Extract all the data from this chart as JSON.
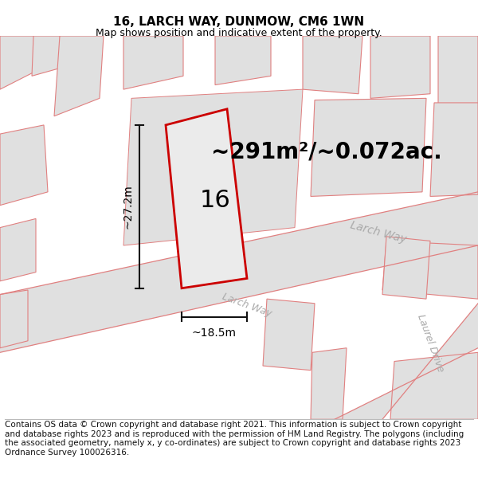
{
  "title": "16, LARCH WAY, DUNMOW, CM6 1WN",
  "subtitle": "Map shows position and indicative extent of the property.",
  "area_label": "~291m²/~0.072ac.",
  "number_label": "16",
  "width_label": "~18.5m",
  "height_label": "~27.2m",
  "larch_way_label": "Larch Way",
  "larch_way_road_label": "Larch Way",
  "laurel_drive_label": "Laurel Drive",
  "footer": "Contains OS data © Crown copyright and database right 2021. This information is subject to Crown copyright and database rights 2023 and is reproduced with the permission of HM Land Registry. The polygons (including the associated geometry, namely x, y co-ordinates) are subject to Crown copyright and database rights 2023 Ordnance Survey 100026316.",
  "map_bg": "#f7f7f7",
  "road_fill": "#e0e0e0",
  "building_fill": "#e0e0e0",
  "building_edge": "#e08080",
  "plot_edge": "#cc0000",
  "plot_fill": "#ebebeb",
  "dim_color": "#111111",
  "road_label_color": "#aaaaaa",
  "title_fontsize": 11,
  "subtitle_fontsize": 9,
  "area_fontsize": 20,
  "number_fontsize": 22,
  "footer_fontsize": 7.5,
  "dim_fontsize": 10
}
